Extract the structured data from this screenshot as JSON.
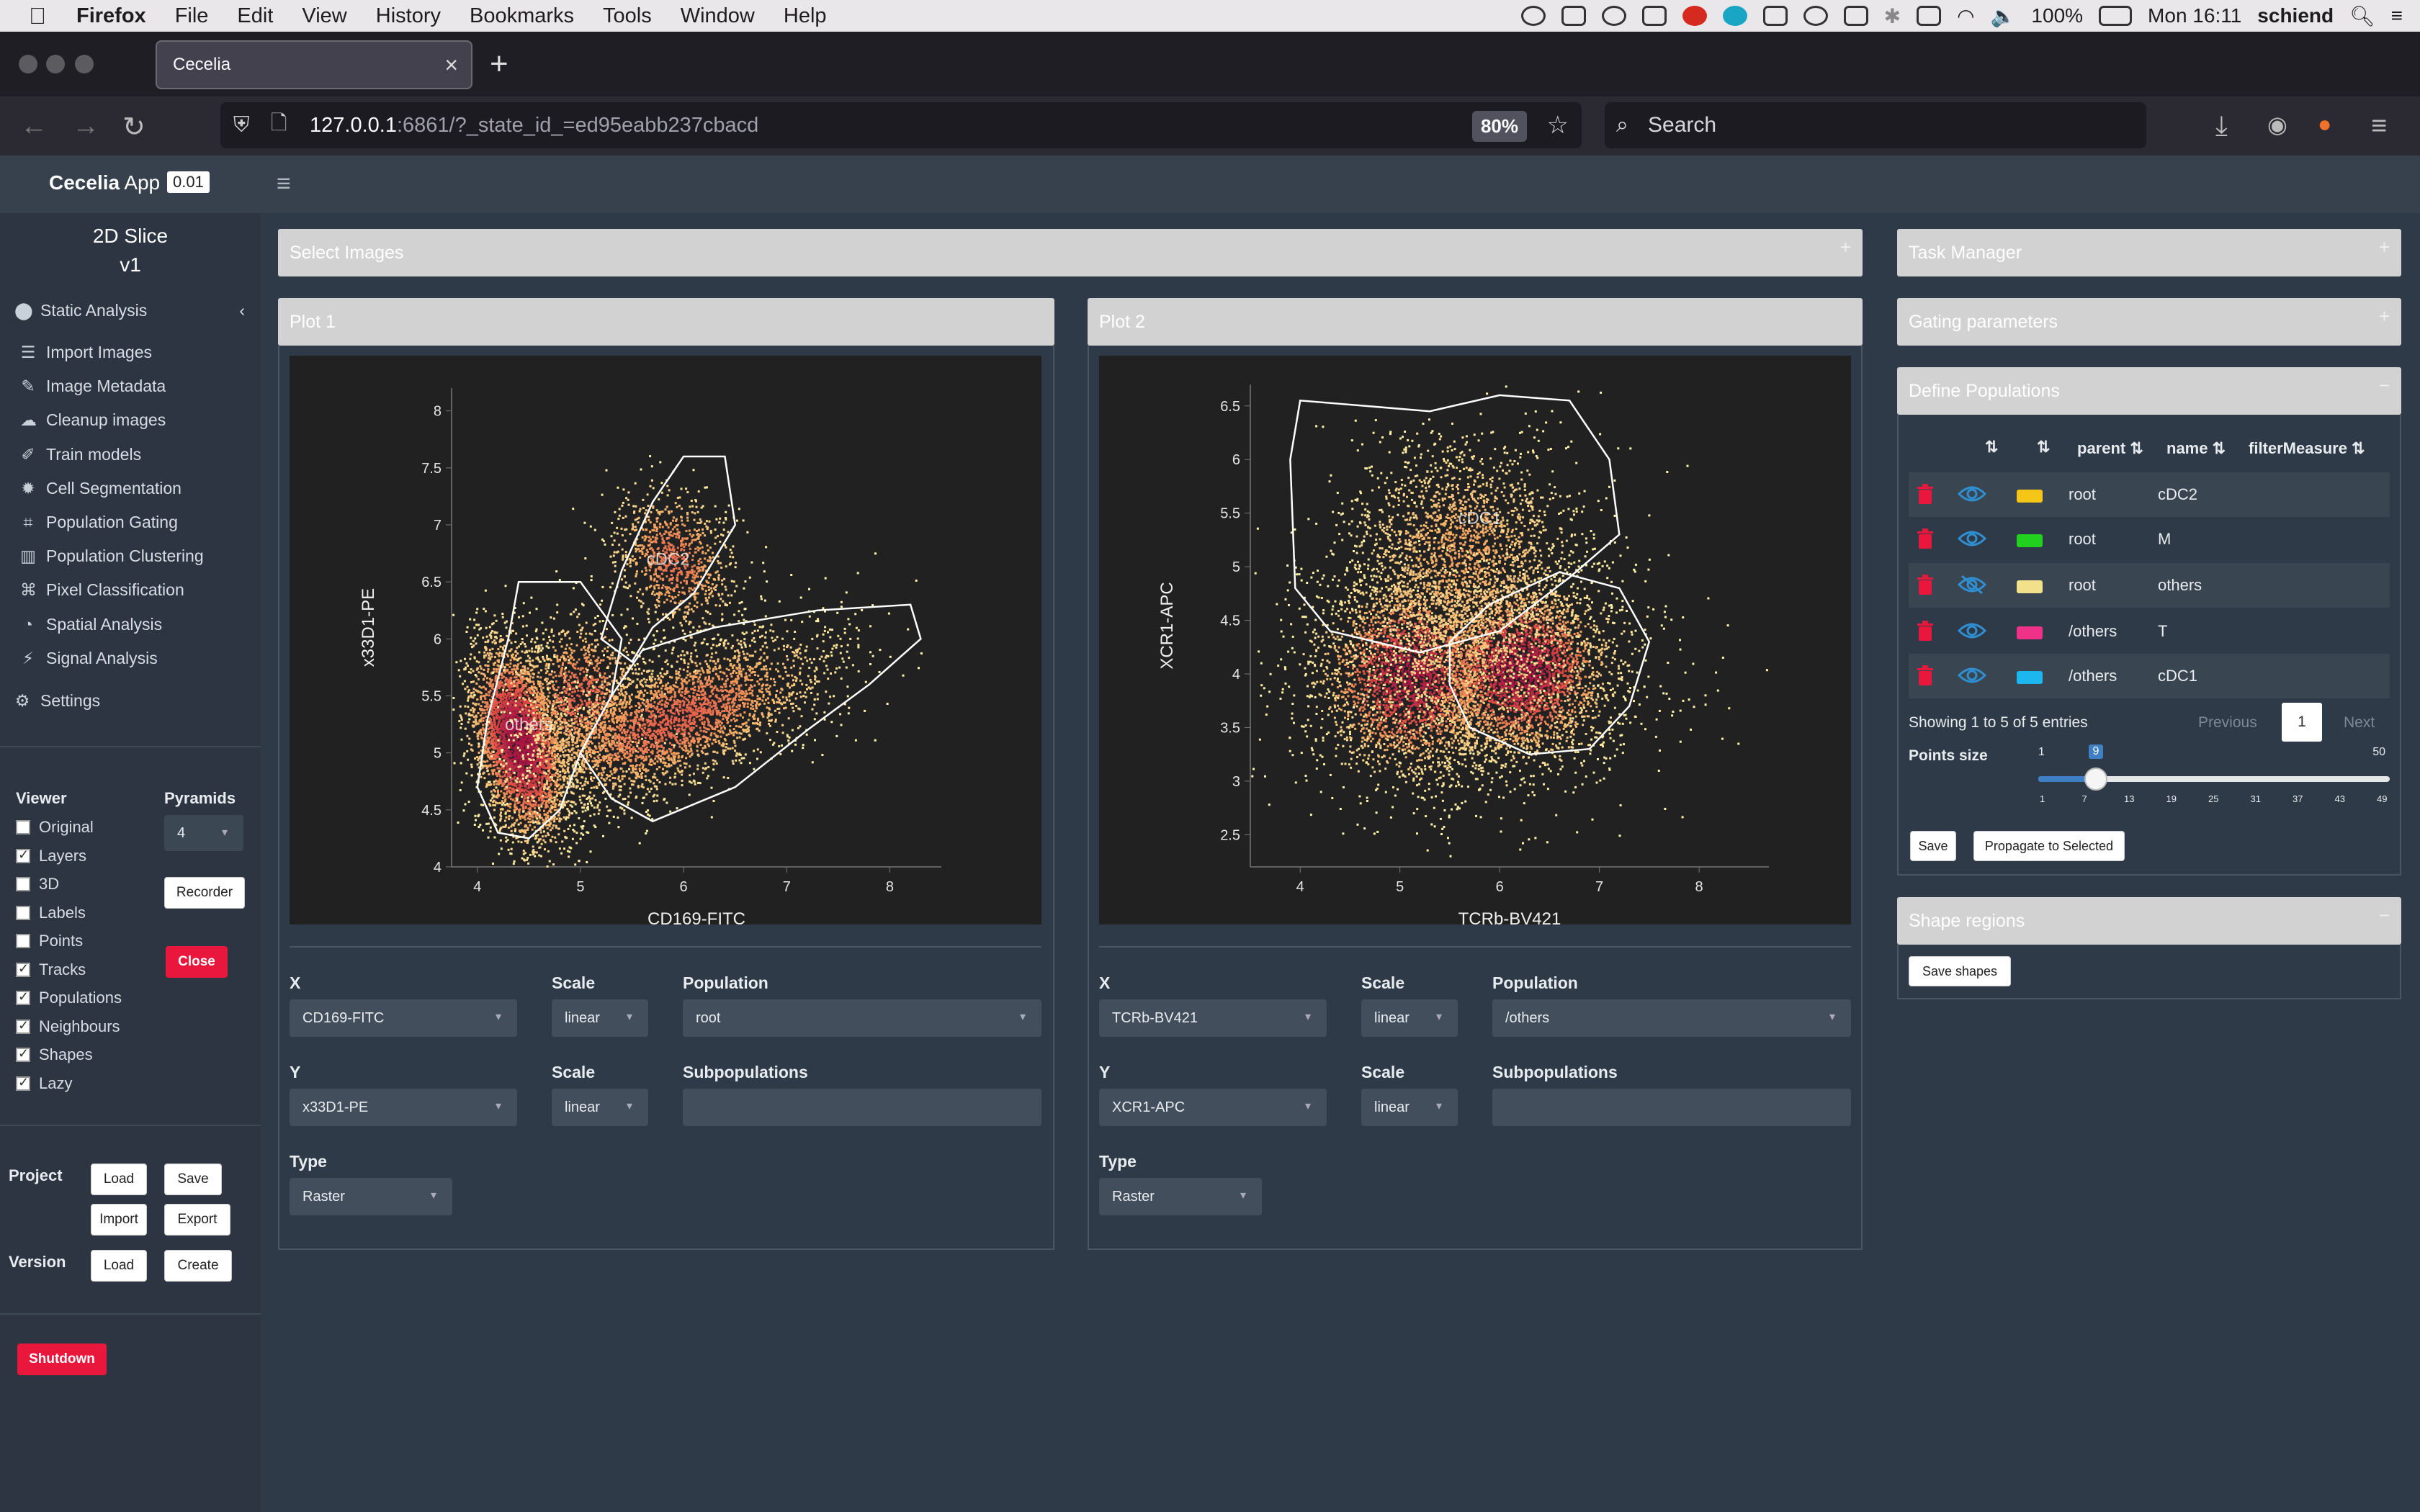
{
  "menubar": {
    "app": "Firefox",
    "items": [
      "File",
      "Edit",
      "View",
      "History",
      "Bookmarks",
      "Tools",
      "Window",
      "Help"
    ],
    "battery": "100%",
    "clock": "Mon 16:11",
    "user": "schiend"
  },
  "browser": {
    "tab_title": "Cecelia",
    "url_host": "127.0.0.1",
    "url_rest": ":6861/?_state_id_=ed95eabb237cbacd",
    "zoom": "80%",
    "search_placeholder": "Search"
  },
  "app": {
    "name": "Cecelia",
    "name_suffix": "App",
    "version": "0.01",
    "module_title": "2D Slice",
    "module_version": "v1"
  },
  "sidebar": {
    "section": "Static Analysis",
    "items": [
      {
        "label": "Import Images",
        "icon": "list-icon"
      },
      {
        "label": "Image Metadata",
        "icon": "pen-icon"
      },
      {
        "label": "Cleanup images",
        "icon": "broom-icon"
      },
      {
        "label": "Train models",
        "icon": "brush-icon"
      },
      {
        "label": "Cell Segmentation",
        "icon": "star-icon"
      },
      {
        "label": "Population Gating",
        "icon": "gate-icon"
      },
      {
        "label": "Population Clustering",
        "icon": "map-icon"
      },
      {
        "label": "Pixel Classification",
        "icon": "robot-icon"
      },
      {
        "label": "Spatial Analysis",
        "icon": "pie-icon"
      },
      {
        "label": "Signal Analysis",
        "icon": "bolt-icon"
      }
    ],
    "settings": "Settings",
    "viewer_label": "Viewer",
    "pyramids_label": "Pyramids",
    "pyramids_value": "4",
    "viewer_options": [
      {
        "label": "Original",
        "checked": false
      },
      {
        "label": "Layers",
        "checked": true
      },
      {
        "label": "3D",
        "checked": false
      },
      {
        "label": "Labels",
        "checked": false
      },
      {
        "label": "Points",
        "checked": false
      },
      {
        "label": "Tracks",
        "checked": true
      },
      {
        "label": "Populations",
        "checked": true
      },
      {
        "label": "Neighbours",
        "checked": true
      },
      {
        "label": "Shapes",
        "checked": true
      },
      {
        "label": "Lazy",
        "checked": true
      }
    ],
    "recorder": "Recorder",
    "close": "Close",
    "project_label": "Project",
    "version_label": "Version",
    "load": "Load",
    "save": "Save",
    "import": "Import",
    "export": "Export",
    "version_load": "Load",
    "create": "Create",
    "shutdown": "Shutdown"
  },
  "main": {
    "select_images": "Select Images",
    "plots": [
      {
        "title": "Plot 1",
        "x_channel": "CD169-FITC",
        "x_scale": "linear",
        "y_channel": "x33D1-PE",
        "y_scale": "linear",
        "population": "root",
        "subpopulations": "",
        "type": "Raster",
        "xlabel": "CD169-FITC",
        "ylabel": "x33D1-PE",
        "xticks": [
          "4",
          "5",
          "6",
          "7",
          "8"
        ],
        "yticks": [
          "4",
          "4.5",
          "5",
          "5.5",
          "6",
          "6.5",
          "7",
          "7.5",
          "8"
        ],
        "gate_labels": [
          "cDC2",
          "others"
        ]
      },
      {
        "title": "Plot 2",
        "x_channel": "TCRb-BV421",
        "x_scale": "linear",
        "y_channel": "XCR1-APC",
        "y_scale": "linear",
        "population": "/others",
        "subpopulations": "",
        "type": "Raster",
        "xlabel": "TCRb-BV421",
        "ylabel": "XCR1-APC",
        "xticks": [
          "4",
          "5",
          "6",
          "7",
          "8"
        ],
        "yticks": [
          "2.5",
          "3",
          "3.5",
          "4",
          "4.5",
          "5",
          "5.5",
          "6",
          "6.5"
        ],
        "gate_labels": [
          "cDC1"
        ]
      }
    ],
    "labels": {
      "x": "X",
      "y": "Y",
      "scale": "Scale",
      "population": "Population",
      "subpopulations": "Subpopulations",
      "type": "Type"
    }
  },
  "right": {
    "task_manager": "Task Manager",
    "gating_parameters": "Gating parameters",
    "define_populations": "Define Populations",
    "shape_regions": "Shape regions",
    "columns": [
      "parent",
      "name",
      "filterMeasure"
    ],
    "rows": [
      {
        "parent": "root",
        "name": "cDC2",
        "color": "#f5c518",
        "visible": true
      },
      {
        "parent": "root",
        "name": "M",
        "color": "#22d11e",
        "visible": true
      },
      {
        "parent": "root",
        "name": "others",
        "color": "#f2e08a",
        "visible": false
      },
      {
        "parent": "/others",
        "name": "T",
        "color": "#f0318a",
        "visible": true
      },
      {
        "parent": "/others",
        "name": "cDC1",
        "color": "#1cb7ee",
        "visible": true
      }
    ],
    "showing": "Showing 1 to 5 of 5 entries",
    "previous": "Previous",
    "page": "1",
    "next": "Next",
    "points_size_label": "Points size",
    "slider": {
      "min": "1",
      "max": "50",
      "value": "9",
      "ticks": [
        "1",
        "7",
        "13",
        "19",
        "25",
        "31",
        "37",
        "43",
        "49"
      ],
      "fraction": 0.163
    },
    "save": "Save",
    "propagate": "Propagate to Selected",
    "save_shapes": "Save shapes"
  }
}
